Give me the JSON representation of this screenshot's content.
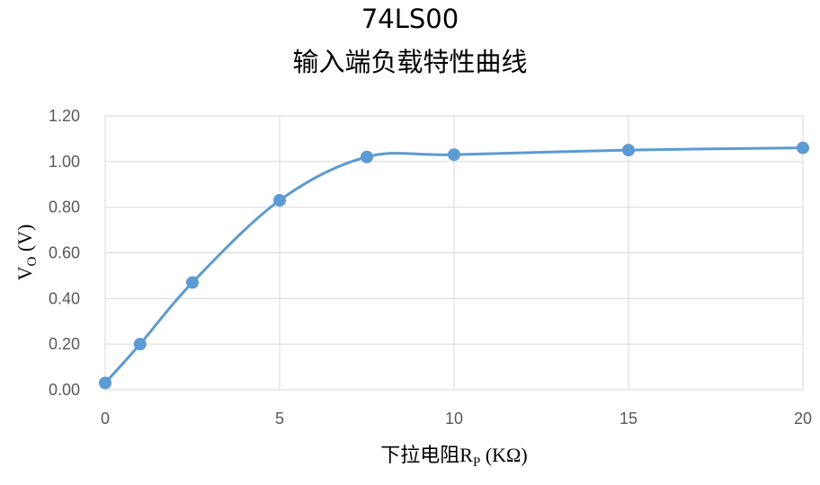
{
  "chart_data": {
    "type": "line",
    "title_line1": "74LS00",
    "title_line2": "输入端负载特性曲线",
    "xlabel_main": "下拉电阻R",
    "xlabel_sub": "P",
    "xlabel_unit": " (KΩ)",
    "ylabel_main": "V",
    "ylabel_sub": "O",
    "ylabel_unit": " (V)",
    "xlim": [
      0,
      20
    ],
    "ylim": [
      0,
      1.2
    ],
    "xticks": [
      0,
      5,
      10,
      15,
      20
    ],
    "yticks": [
      0,
      0.2,
      0.4,
      0.6,
      0.8,
      1.0,
      1.2
    ],
    "xtick_labels": [
      "0",
      "5",
      "10",
      "15",
      "20"
    ],
    "ytick_labels": [
      "0.00",
      "0.20",
      "0.40",
      "0.60",
      "0.80",
      "1.00",
      "1.20"
    ],
    "grid": true,
    "smooth": true,
    "series": [
      {
        "color": "#5B9BD5",
        "x": [
          0,
          1,
          2.5,
          5,
          7.5,
          10,
          15,
          20
        ],
        "y": [
          0.03,
          0.2,
          0.47,
          0.83,
          1.02,
          1.03,
          1.05,
          1.06
        ]
      }
    ]
  }
}
